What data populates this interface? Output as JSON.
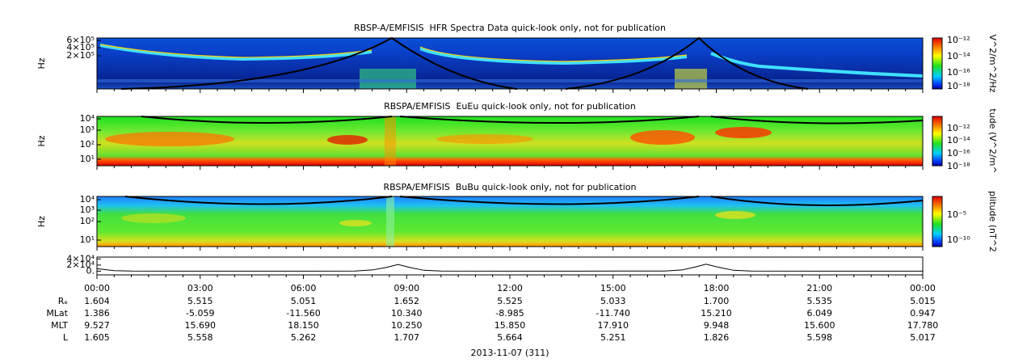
{
  "panels": [
    {
      "title": "RBSP-A/EMFISIS  HFR Spectra Data quick-look only, not for publication",
      "y_label": "Hz",
      "y_tick_labels": [
        "6×10⁵",
        "4×10⁵",
        "2×10⁵"
      ],
      "colorbar_label": "V^2/m^2/Hz",
      "colorbar_tick_labels": [
        "10⁻¹²",
        "10⁻¹⁴",
        "10⁻¹⁶",
        "10⁻¹⁸"
      ]
    },
    {
      "title": "RBSPA/EMFISIS  EuEu quick-look only, not for publication",
      "y_label": "Hz",
      "y_tick_labels": [
        "10⁴",
        "10³",
        "10²",
        "10¹"
      ],
      "colorbar_label": "tude (V^2/m^",
      "colorbar_tick_labels": [
        "10⁻¹²",
        "10⁻¹⁴",
        "10⁻¹⁶",
        "10⁻¹⁸"
      ]
    },
    {
      "title": "RBSPA/EMFISIS  BuBu quick-look only, not for publication",
      "y_label": "Hz",
      "y_tick_labels": [
        "10⁴",
        "10³",
        "10²",
        "10¹"
      ],
      "colorbar_label": "plitude (nT^2",
      "colorbar_tick_labels": [
        "10⁻⁵",
        "10⁻¹⁰"
      ]
    }
  ],
  "chart_data": {
    "type": "line",
    "x": [
      0,
      0.5,
      1,
      2,
      4,
      6,
      7.5,
      8,
      8.4,
      8.75,
      9.1,
      9.5,
      10,
      12,
      14,
      16.5,
      17,
      17.4,
      17.7,
      18.1,
      18.5,
      19,
      21,
      23,
      24
    ],
    "values": [
      8000,
      2000,
      500,
      300,
      300,
      300,
      600,
      4000,
      12000,
      22000,
      12000,
      3000,
      600,
      300,
      300,
      600,
      4000,
      14000,
      23000,
      12000,
      3000,
      600,
      300,
      300,
      300
    ],
    "xlim": [
      0,
      24
    ],
    "ylim": [
      -12000,
      46000
    ],
    "yticks": [
      {
        "value": 40000,
        "label": "4×10⁴"
      },
      {
        "value": 20000,
        "label": "2×10⁴"
      },
      {
        "value": 0,
        "label": "0."
      }
    ],
    "color": "#000000"
  },
  "time_labels": [
    "00:00",
    "03:00",
    "06:00",
    "09:00",
    "12:00",
    "15:00",
    "18:00",
    "21:00",
    "00:00"
  ],
  "ephemeris": [
    {
      "label": "Rₑ",
      "values": [
        "1.604",
        "5.515",
        "5.051",
        "1.652",
        "5.525",
        "5.033",
        "1.700",
        "5.535",
        "5.015"
      ]
    },
    {
      "label": "MLat",
      "values": [
        "1.386",
        "-5.059",
        "-11.560",
        "10.340",
        "-8.985",
        "-11.740",
        "15.210",
        "6.049",
        "0.947"
      ]
    },
    {
      "label": "MLT",
      "values": [
        "9.527",
        "15.690",
        "18.150",
        "10.250",
        "15.850",
        "17.910",
        "9.948",
        "15.600",
        "17.780"
      ]
    },
    {
      "label": "L",
      "values": [
        "1.605",
        "5.558",
        "5.262",
        "1.707",
        "5.664",
        "5.251",
        "1.826",
        "5.598",
        "5.017"
      ]
    }
  ],
  "date_label": "2013-11-07 (311)"
}
